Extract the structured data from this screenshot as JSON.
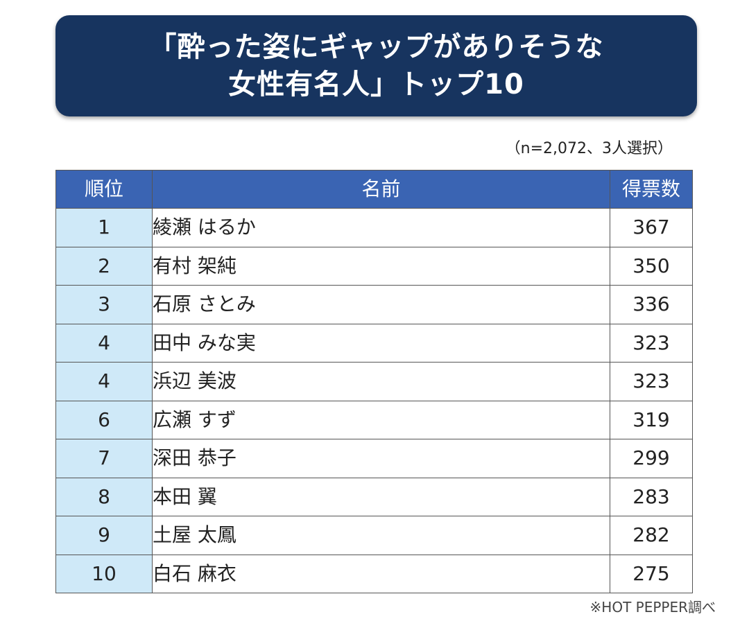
{
  "title": {
    "line1": "「酔った姿にギャップがありそうな",
    "line2": "女性有名人」トップ10"
  },
  "note": "（n=2,072、3人選択）",
  "source": "※HOT PEPPER調べ",
  "colors": {
    "title_bg": "#17345f",
    "header_bg": "#3a64b3",
    "rank_bg": "#cfe9f8"
  },
  "chart_data": {
    "type": "table",
    "title": "「酔った姿にギャップがありそうな女性有名人」トップ10",
    "columns": [
      "順位",
      "名前",
      "得票数"
    ],
    "rows": [
      {
        "rank": "1",
        "name": "綾瀬 はるか",
        "votes": "367"
      },
      {
        "rank": "2",
        "name": "有村 架純",
        "votes": "350"
      },
      {
        "rank": "3",
        "name": "石原 さとみ",
        "votes": "336"
      },
      {
        "rank": "4",
        "name": "田中 みな実",
        "votes": "323"
      },
      {
        "rank": "4",
        "name": "浜辺 美波",
        "votes": "323"
      },
      {
        "rank": "6",
        "name": "広瀬 すず",
        "votes": "319"
      },
      {
        "rank": "7",
        "name": "深田 恭子",
        "votes": "299"
      },
      {
        "rank": "8",
        "name": "本田 翼",
        "votes": "283"
      },
      {
        "rank": "9",
        "name": "土屋 太鳳",
        "votes": "282"
      },
      {
        "rank": "10",
        "name": "白石 麻衣",
        "votes": "275"
      }
    ]
  }
}
